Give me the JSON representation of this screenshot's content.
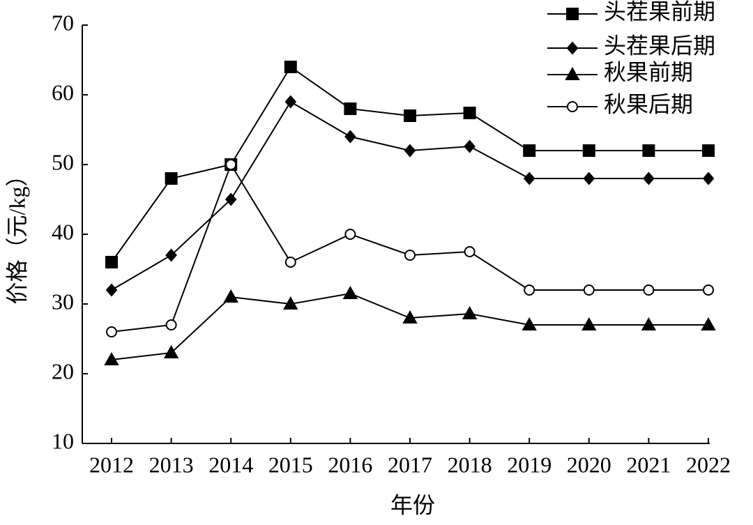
{
  "chart_data": {
    "type": "line",
    "xlabel": "年份",
    "ylabel": "价格（元/kg）",
    "categories": [
      "2012",
      "2013",
      "2014",
      "2015",
      "2016",
      "2017",
      "2018",
      "2019",
      "2020",
      "2021",
      "2022"
    ],
    "series": [
      {
        "name": "头茬果前期",
        "color": "#000000",
        "marker": "square",
        "values": [
          36,
          48,
          50,
          64,
          58,
          57,
          57.4,
          52,
          52,
          52,
          52
        ]
      },
      {
        "name": "头茬果后期",
        "color": "#000000",
        "marker": "diamond",
        "values": [
          32,
          37,
          45,
          59,
          54,
          52,
          52.6,
          48,
          48,
          48,
          48
        ]
      },
      {
        "name": "秋果前期",
        "color": "#000000",
        "marker": "triangle",
        "values": [
          22,
          23,
          31,
          30,
          31.5,
          28,
          28.6,
          27,
          27,
          27,
          27
        ]
      },
      {
        "name": "秋果后期",
        "color": "#000000",
        "marker": "circle",
        "values": [
          26,
          27,
          50,
          36,
          40,
          37,
          37.5,
          32,
          32,
          32,
          32
        ]
      }
    ],
    "ylim": [
      10,
      70
    ],
    "yticks": [
      10,
      20,
      30,
      40,
      50,
      60,
      70
    ],
    "grid": false,
    "legend": "upper right"
  }
}
